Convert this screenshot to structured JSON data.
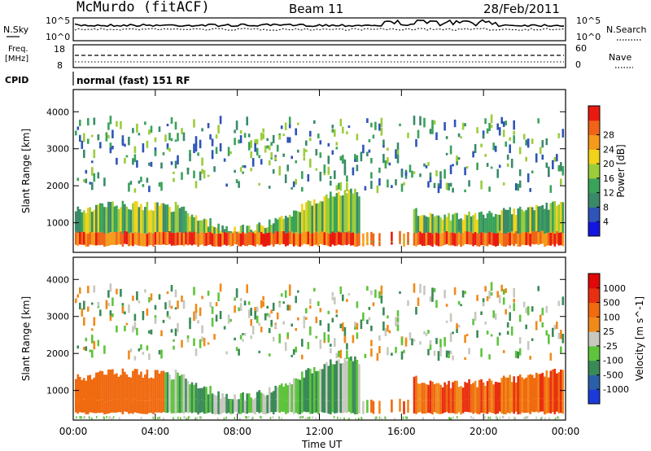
{
  "header": {
    "station": "McMurdo (fitACF)",
    "beam": "Beam 11",
    "date": "28/Feb/2011"
  },
  "noise_panel": {
    "left_label": "N.Sky",
    "right_label": "N.Search",
    "left_ticks": [
      "10^5",
      "10^0"
    ],
    "right_ticks": [
      "10^5",
      "10^0"
    ]
  },
  "freq_panel": {
    "left_label_1": "Freq.",
    "left_label_2": "[MHz]",
    "left_ticks": [
      "18",
      "8"
    ],
    "right_label": "Nave",
    "right_ticks": [
      "60",
      "0"
    ]
  },
  "cpid": {
    "label": "CPID",
    "value": "normal (fast) 151 RF"
  },
  "colors": {
    "power": [
      "#1515e0",
      "#2e54b8",
      "#3a8a6a",
      "#3aa35a",
      "#9ccc3a",
      "#f2d21a",
      "#f59a1a",
      "#f06418",
      "#e81a10"
    ],
    "velocity": [
      "#1a3bd8",
      "#2b5fa8",
      "#3a8a58",
      "#5ec43c",
      "#c8c8c0",
      "#f08a1a",
      "#f06a10",
      "#e83010",
      "#e00808"
    ]
  },
  "chart_data": [
    {
      "type": "heatmap",
      "title": "",
      "xlabel": "",
      "ylabel": "Slant Range [km]",
      "x_ticks": [
        "00:00",
        "04:00",
        "08:00",
        "12:00",
        "16:00",
        "20:00",
        "00:00"
      ],
      "y_ticks": [
        1000,
        2000,
        3000,
        4000
      ],
      "ylim": [
        200,
        4600
      ],
      "colorbar": {
        "label": "Power [dB]",
        "ticks": [
          4,
          8,
          12,
          16,
          20,
          24,
          28
        ],
        "range": [
          0,
          32
        ]
      }
    },
    {
      "type": "heatmap",
      "title": "",
      "xlabel": "Time UT",
      "ylabel": "Slant Range [km]",
      "x_ticks": [
        "00:00",
        "04:00",
        "08:00",
        "12:00",
        "16:00",
        "20:00",
        "00:00"
      ],
      "y_ticks": [
        1000,
        2000,
        3000,
        4000
      ],
      "ylim": [
        200,
        4600
      ],
      "colorbar": {
        "label": "Velocity [m s^-1]",
        "ticks": [
          1000,
          500,
          100,
          25,
          -25,
          -100,
          -500,
          -1000
        ]
      }
    }
  ]
}
